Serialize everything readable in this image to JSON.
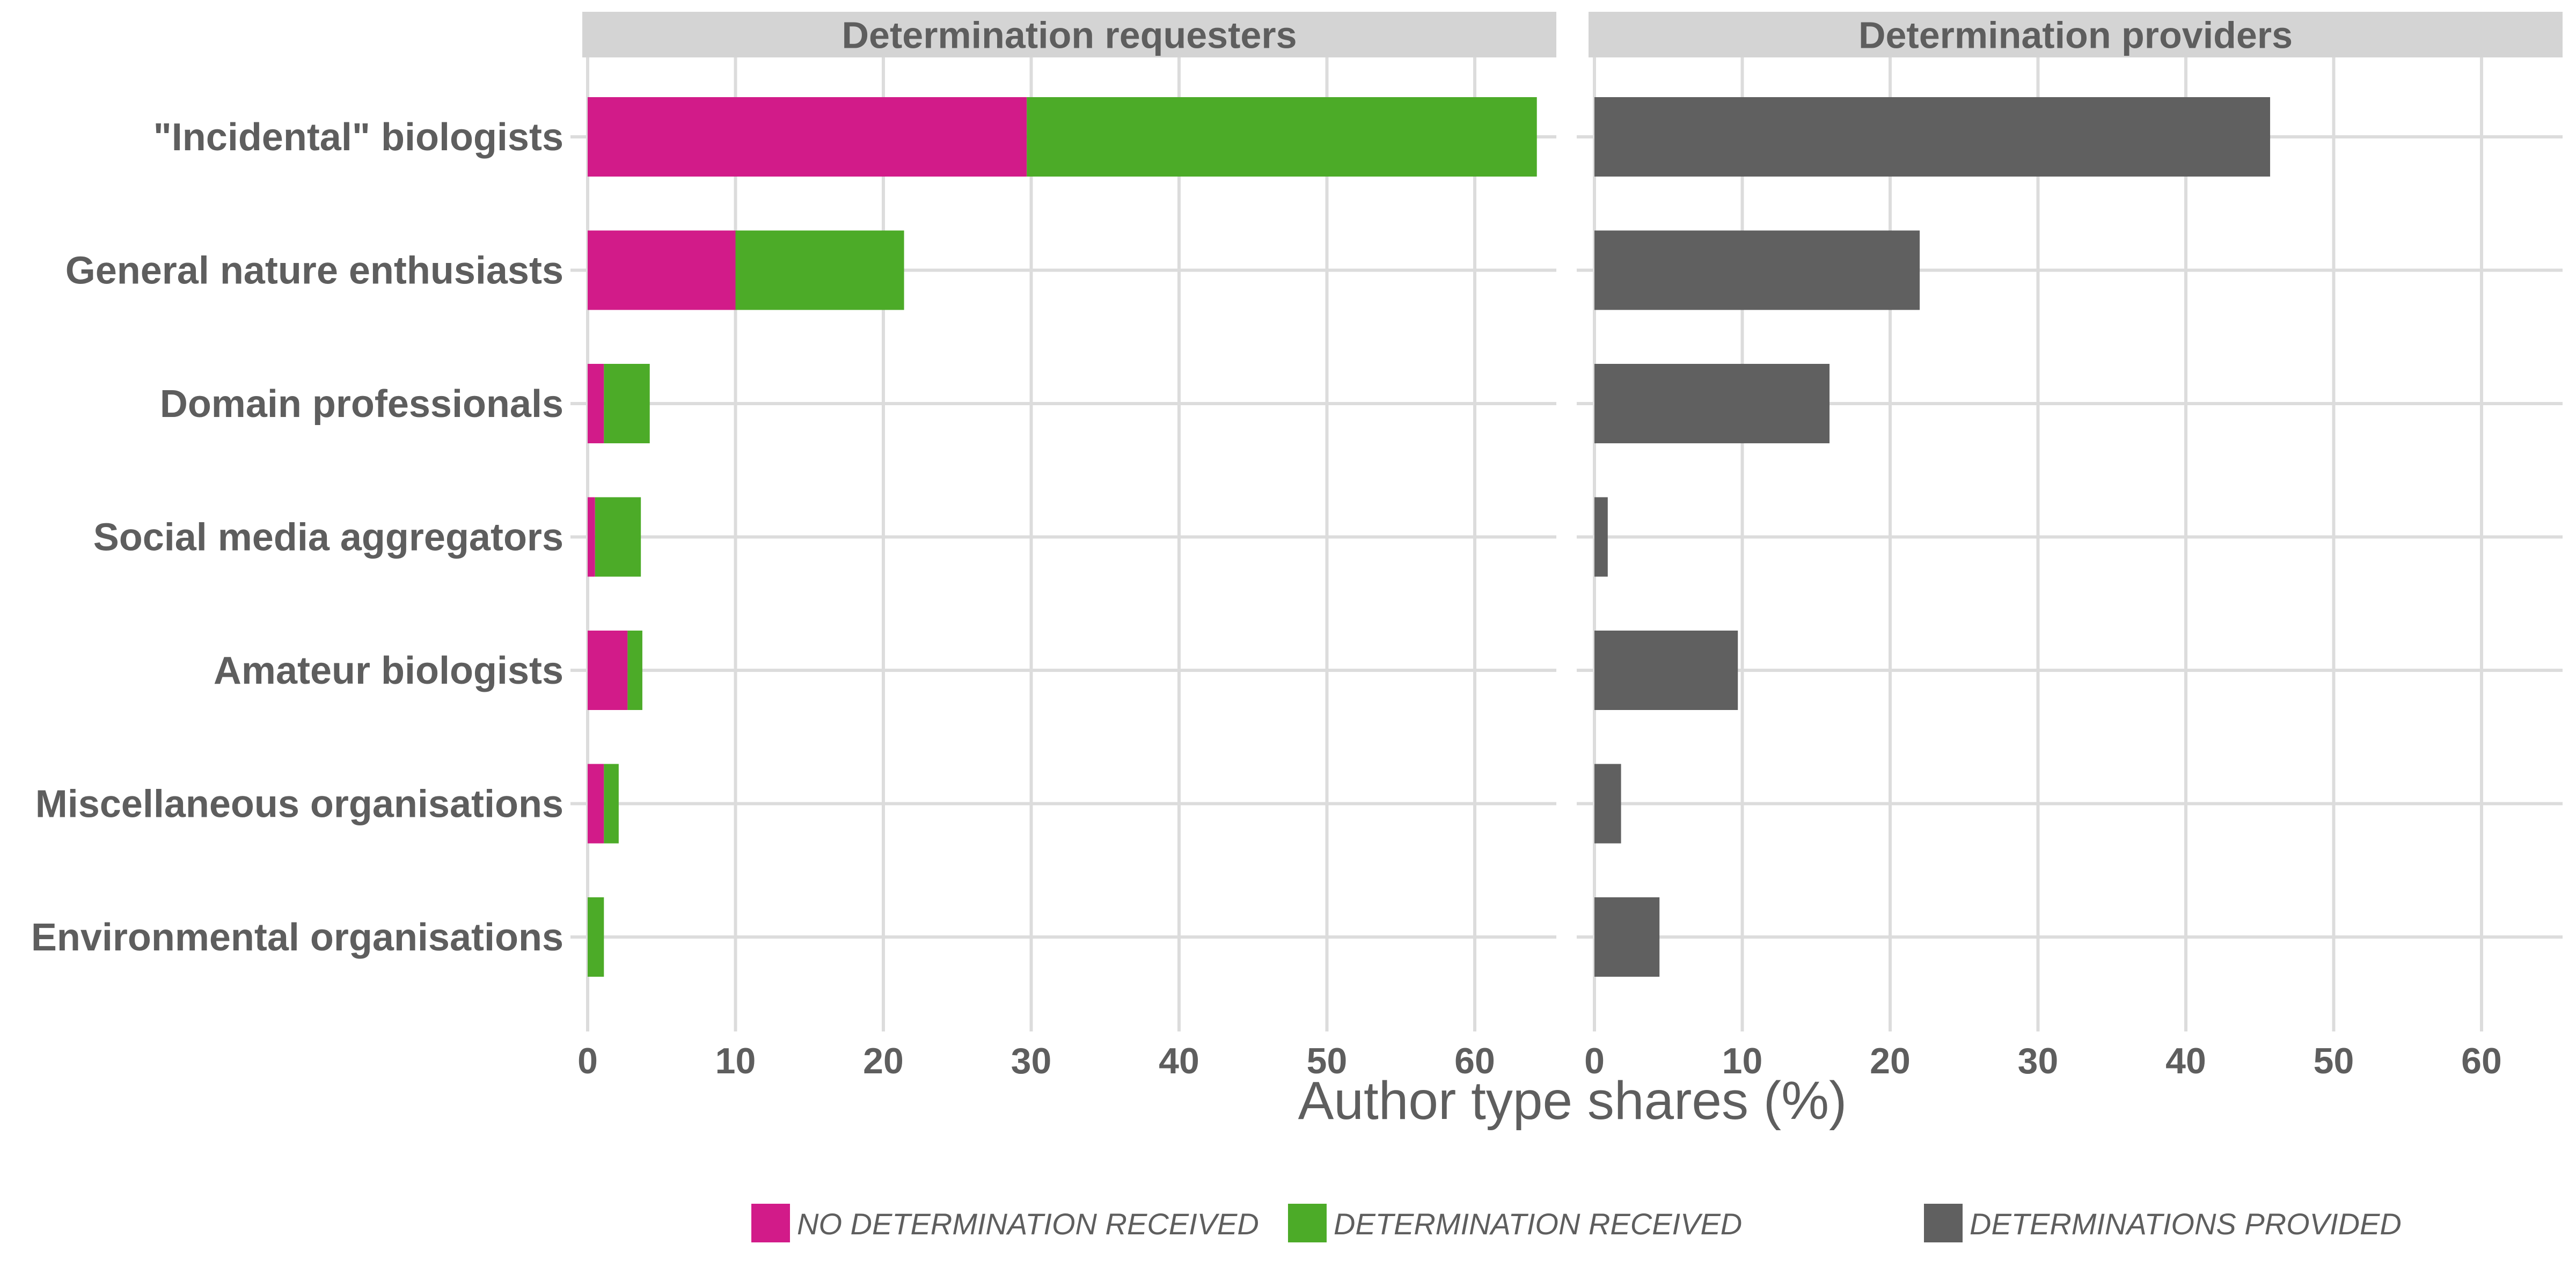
{
  "chart_data": {
    "type": "bar",
    "orientation": "horizontal",
    "stacked": true,
    "xlabel": "Author type shares (%)",
    "xlim": [
      0,
      65
    ],
    "xticks": [
      0,
      10,
      20,
      30,
      40,
      50,
      60
    ],
    "grid": true,
    "legend_position": "bottom",
    "categories": [
      "\"Incidental\" biologists",
      "General nature enthusiasts",
      "Domain professionals",
      "Social media aggregators",
      "Amateur biologists",
      "Miscellaneous organisations",
      "Environmental organisations"
    ],
    "panels": [
      {
        "title": "Determination requesters",
        "series": [
          {
            "name": "NO DETERMINATION RECEIVED",
            "color": "#d21b89",
            "values": [
              29.7,
              10.0,
              1.1,
              0.5,
              2.7,
              1.1,
              0.0
            ]
          },
          {
            "name": "DETERMINATION RECEIVED",
            "color": "#4cab28",
            "values": [
              34.5,
              11.4,
              3.1,
              3.1,
              1.0,
              1.0,
              1.1
            ]
          }
        ]
      },
      {
        "title": "Determination providers",
        "series": [
          {
            "name": "DETERMINATIONS PROVIDED",
            "color": "#606060",
            "values": [
              45.7,
              22.0,
              15.9,
              0.9,
              9.7,
              1.8,
              4.4
            ]
          }
        ]
      }
    ]
  }
}
